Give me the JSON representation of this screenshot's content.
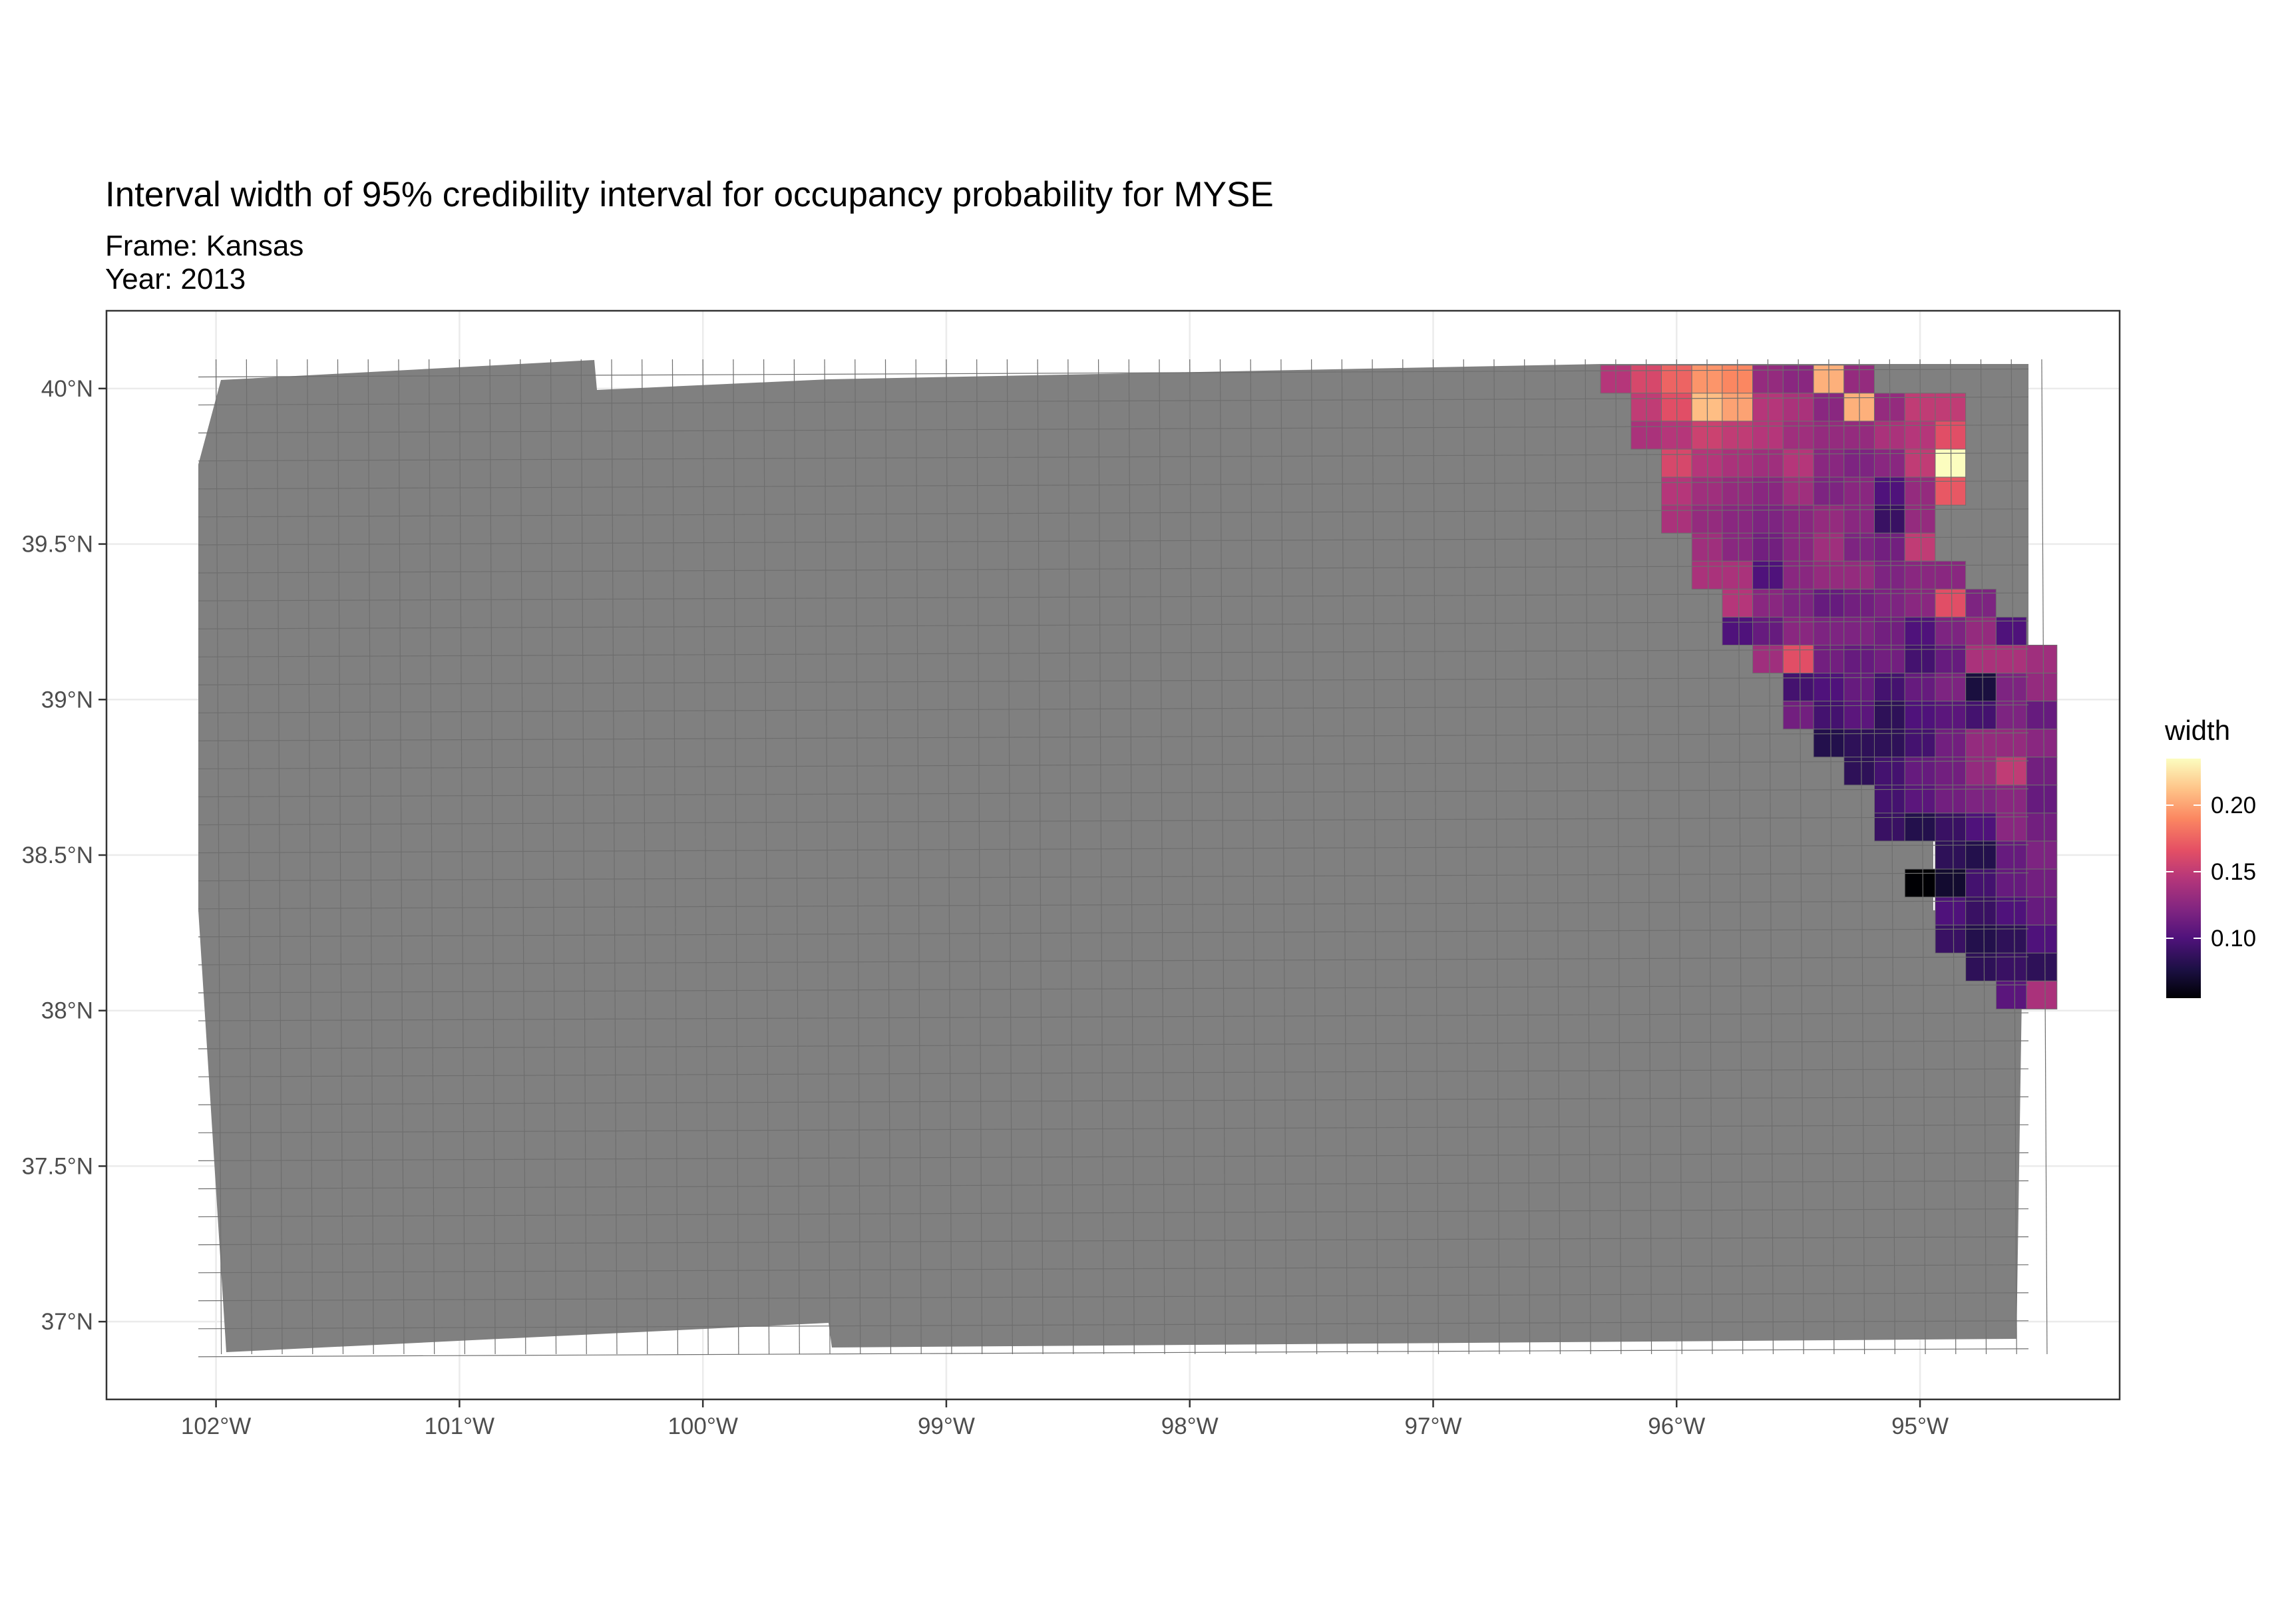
{
  "title": "Interval width of 95% credibility interval for occupancy probability for MYSE",
  "subtitle_frame": "Frame: Kansas",
  "subtitle_year": "Year: 2013",
  "chart_data": {
    "type": "heatmap",
    "title": "Interval width of 95% credibility interval for occupancy probability for MYSE",
    "subtitle": [
      "Frame: Kansas",
      "Year: 2013"
    ],
    "x_ticks": [
      "102°W",
      "101°W",
      "100°W",
      "99°W",
      "98°W",
      "97°W",
      "96°W",
      "95°W"
    ],
    "x_tick_values": [
      -102,
      -101,
      -100,
      -99,
      -98,
      -97,
      -96,
      -95
    ],
    "y_ticks": [
      "40°N",
      "39.5°N",
      "39°N",
      "38.5°N",
      "38°N",
      "37.5°N",
      "37°N"
    ],
    "y_tick_values": [
      40,
      39.5,
      39,
      38.5,
      38,
      37.5,
      37
    ],
    "xlim": [
      -102.45,
      -94.18
    ],
    "ylim": [
      36.75,
      40.25
    ],
    "grid": true,
    "na_color": "#808080",
    "legend": {
      "title": "width",
      "position": "right",
      "ticks": [
        "0.20",
        "0.15",
        "0.10"
      ],
      "tick_values": [
        0.2,
        0.15,
        0.1
      ],
      "range": [
        0.055,
        0.235
      ],
      "colormap": "magma"
    },
    "cells_cols_lon_start": -96.3,
    "cells_row_lat_start": 40.08,
    "cells": [
      {
        "lat": 40.03,
        "lons": [
          -96.25,
          -96.125,
          -96.0,
          -95.875,
          -95.75,
          -95.625,
          -95.5,
          -95.375,
          -95.25
        ],
        "values": [
          0.145,
          0.16,
          0.175,
          0.195,
          0.19,
          0.13,
          0.125,
          0.205,
          0.13
        ]
      },
      {
        "lat": 39.94,
        "lons": [
          -96.125,
          -96.0,
          -95.875,
          -95.75,
          -95.625,
          -95.5,
          -95.375,
          -95.25,
          -95.125,
          -95.0,
          -94.875
        ],
        "values": [
          0.15,
          0.165,
          0.21,
          0.2,
          0.145,
          0.14,
          0.125,
          0.205,
          0.13,
          0.15,
          0.15
        ]
      },
      {
        "lat": 39.85,
        "lons": [
          -96.125,
          -96.0,
          -95.875,
          -95.75,
          -95.625,
          -95.5,
          -95.375,
          -95.25,
          -95.125,
          -95.0,
          -94.875
        ],
        "values": [
          0.14,
          0.145,
          0.155,
          0.15,
          0.145,
          0.135,
          0.13,
          0.13,
          0.14,
          0.145,
          0.165
        ]
      },
      {
        "lat": 39.76,
        "lons": [
          -96.0,
          -95.875,
          -95.75,
          -95.625,
          -95.5,
          -95.375,
          -95.25,
          -95.125,
          -95.0,
          -94.875
        ],
        "values": [
          0.16,
          0.145,
          0.14,
          0.135,
          0.145,
          0.125,
          0.12,
          0.125,
          0.15,
          0.235
        ]
      },
      {
        "lat": 39.67,
        "lons": [
          -96.0,
          -95.875,
          -95.75,
          -95.625,
          -95.5,
          -95.375,
          -95.25,
          -95.125,
          -95.0,
          -94.875
        ],
        "values": [
          0.145,
          0.135,
          0.13,
          0.125,
          0.135,
          0.12,
          0.125,
          0.1,
          0.13,
          0.17
        ]
      },
      {
        "lat": 39.58,
        "lons": [
          -96.0,
          -95.875,
          -95.75,
          -95.625,
          -95.5,
          -95.375,
          -95.25,
          -95.125,
          -95.0
        ],
        "values": [
          0.14,
          0.13,
          0.125,
          0.12,
          0.125,
          0.13,
          0.125,
          0.09,
          0.13
        ]
      },
      {
        "lat": 39.49,
        "lons": [
          -95.875,
          -95.75,
          -95.625,
          -95.5,
          -95.375,
          -95.25,
          -95.125,
          -95.0
        ],
        "values": [
          0.135,
          0.125,
          0.115,
          0.125,
          0.135,
          0.12,
          0.115,
          0.15
        ]
      },
      {
        "lat": 39.4,
        "lons": [
          -95.875,
          -95.75,
          -95.625,
          -95.5,
          -95.375,
          -95.25,
          -95.125,
          -95.0,
          -94.875
        ],
        "values": [
          0.14,
          0.14,
          0.1,
          0.125,
          0.13,
          0.13,
          0.12,
          0.125,
          0.125
        ]
      },
      {
        "lat": 39.31,
        "lons": [
          -95.75,
          -95.625,
          -95.5,
          -95.375,
          -95.25,
          -95.125,
          -95.0,
          -94.875,
          -94.75
        ],
        "values": [
          0.145,
          0.125,
          0.12,
          0.11,
          0.115,
          0.12,
          0.125,
          0.165,
          0.12
        ]
      },
      {
        "lat": 39.22,
        "lons": [
          -95.75,
          -95.625,
          -95.5,
          -95.375,
          -95.25,
          -95.125,
          -95.0,
          -94.875,
          -94.75,
          -94.625
        ],
        "values": [
          0.1,
          0.11,
          0.125,
          0.12,
          0.12,
          0.115,
          0.1,
          0.12,
          0.13,
          0.1
        ]
      },
      {
        "lat": 39.13,
        "lons": [
          -95.625,
          -95.5,
          -95.375,
          -95.25,
          -95.125,
          -95.0,
          -94.875,
          -94.75,
          -94.625,
          -94.5
        ],
        "values": [
          0.135,
          0.165,
          0.115,
          0.11,
          0.115,
          0.095,
          0.11,
          0.14,
          0.14,
          0.135
        ]
      },
      {
        "lat": 39.04,
        "lons": [
          -95.5,
          -95.375,
          -95.25,
          -95.125,
          -95.0,
          -94.875,
          -94.75,
          -94.625,
          -94.5
        ],
        "values": [
          0.095,
          0.1,
          0.11,
          0.095,
          0.11,
          0.12,
          0.075,
          0.12,
          0.13
        ]
      },
      {
        "lat": 38.95,
        "lons": [
          -95.5,
          -95.375,
          -95.25,
          -95.125,
          -95.0,
          -94.875,
          -94.75,
          -94.625,
          -94.5
        ],
        "values": [
          0.115,
          0.095,
          0.105,
          0.085,
          0.1,
          0.105,
          0.095,
          0.12,
          0.11
        ]
      },
      {
        "lat": 38.86,
        "lons": [
          -95.375,
          -95.25,
          -95.125,
          -95.0,
          -94.875,
          -94.75,
          -94.625,
          -94.5
        ],
        "values": [
          0.08,
          0.085,
          0.085,
          0.095,
          0.115,
          0.13,
          0.13,
          0.125
        ]
      },
      {
        "lat": 38.77,
        "lons": [
          -95.25,
          -95.125,
          -95.0,
          -94.875,
          -94.75,
          -94.625,
          -94.5
        ],
        "values": [
          0.085,
          0.095,
          0.11,
          0.115,
          0.13,
          0.15,
          0.115
        ]
      },
      {
        "lat": 38.68,
        "lons": [
          -95.125,
          -95.0,
          -94.875,
          -94.75,
          -94.625,
          -94.5
        ],
        "values": [
          0.095,
          0.105,
          0.115,
          0.12,
          0.125,
          0.11
        ]
      },
      {
        "lat": 38.59,
        "lons": [
          -95.125,
          -95.0,
          -94.875,
          -94.75,
          -94.625,
          -94.5
        ],
        "values": [
          0.09,
          0.08,
          0.09,
          0.1,
          0.125,
          0.115
        ]
      },
      {
        "lat": 38.5,
        "lons": [
          -94.875,
          -94.75,
          -94.625,
          -94.5
        ],
        "values": [
          0.085,
          0.08,
          0.11,
          0.12
        ]
      },
      {
        "lat": 38.41,
        "lons": [
          -95.0,
          -94.875,
          -94.75,
          -94.625,
          -94.5
        ],
        "values": [
          0.055,
          0.07,
          0.095,
          0.11,
          0.115
        ]
      },
      {
        "lat": 38.32,
        "lons": [
          -94.875,
          -94.75,
          -94.625,
          -94.5
        ],
        "values": [
          0.1,
          0.09,
          0.1,
          0.11
        ]
      },
      {
        "lat": 38.23,
        "lons": [
          -94.875,
          -94.75,
          -94.625,
          -94.5
        ],
        "values": [
          0.09,
          0.08,
          0.085,
          0.1
        ]
      },
      {
        "lat": 38.14,
        "lons": [
          -94.75,
          -94.625,
          -94.5
        ],
        "values": [
          0.085,
          0.09,
          0.085
        ]
      },
      {
        "lat": 38.05,
        "lons": [
          -94.625,
          -94.5
        ],
        "values": [
          0.105,
          0.14
        ]
      }
    ]
  }
}
